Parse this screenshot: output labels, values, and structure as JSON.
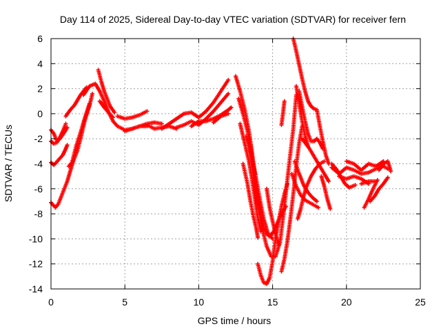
{
  "chart_data": {
    "type": "scatter",
    "title": "Day 114 of 2025, Sidereal Day-to-day VTEC variation (SDTVAR) for receiver fern",
    "xlabel": "GPS time / hours",
    "ylabel": "SDTVAR / TECUs",
    "xlim": [
      0,
      25
    ],
    "ylim": [
      -14,
      6
    ],
    "x_ticks": [
      "0",
      "5",
      "10",
      "15",
      "20",
      "25"
    ],
    "y_ticks": [
      "6",
      "4",
      "2",
      "0",
      "-2",
      "-4",
      "-6",
      "-8",
      "-10",
      "-12",
      "-14"
    ],
    "grid": true,
    "marker": "+",
    "color": "#ff0000",
    "series": [
      {
        "x": [
          0.0,
          0.2,
          0.4,
          0.6,
          0.9,
          1.1
        ],
        "y": [
          -1.3,
          -1.6,
          -2.2,
          -2.0,
          -1.5,
          -1.1
        ]
      },
      {
        "x": [
          0.0,
          0.2,
          0.4,
          0.6,
          0.8,
          1.0
        ],
        "y": [
          -2.2,
          -2.4,
          -2.3,
          -1.9,
          -1.4,
          -0.8
        ]
      },
      {
        "x": [
          0.0,
          0.2,
          0.5,
          0.8,
          1.0,
          1.1
        ],
        "y": [
          -3.9,
          -4.1,
          -3.7,
          -3.3,
          -2.8,
          -2.5
        ]
      },
      {
        "x": [
          0.0,
          0.3,
          0.5,
          0.7,
          0.9,
          1.1,
          1.3,
          1.5
        ],
        "y": [
          -7.1,
          -7.5,
          -7.2,
          -6.6,
          -6.0,
          -5.4,
          -4.6,
          -3.8
        ]
      },
      {
        "x": [
          1.0,
          1.3,
          1.6,
          1.8,
          2.0,
          2.2,
          2.4
        ],
        "y": [
          -0.2,
          0.3,
          0.7,
          1.1,
          1.5,
          1.8,
          2.1
        ]
      },
      {
        "x": [
          1.2,
          1.5,
          1.8,
          2.0,
          2.3,
          2.6,
          2.8
        ],
        "y": [
          -4.2,
          -3.8,
          -2.9,
          -2.0,
          -0.5,
          0.6,
          1.6
        ]
      },
      {
        "x": [
          1.4,
          1.7,
          2.0,
          2.3,
          2.6
        ],
        "y": [
          -4.0,
          -2.6,
          -1.5,
          -0.3,
          0.8
        ]
      },
      {
        "x": [
          2.2,
          2.6,
          3.0,
          3.3,
          3.6,
          3.9,
          4.2,
          4.5,
          5.0,
          5.5,
          6.0,
          6.5
        ],
        "y": [
          1.5,
          2.2,
          2.4,
          1.8,
          1.0,
          0.1,
          -0.6,
          -1.0,
          -1.3,
          -1.2,
          -1.0,
          -1.0
        ]
      },
      {
        "x": [
          3.2,
          3.4,
          3.6,
          3.8,
          4.0,
          4.3
        ],
        "y": [
          3.5,
          2.6,
          1.8,
          1.2,
          0.6,
          0.1
        ]
      },
      {
        "x": [
          3.3,
          3.6,
          3.9,
          4.2
        ],
        "y": [
          1.0,
          0.5,
          0.1,
          -0.3
        ]
      },
      {
        "x": [
          4.5,
          5.0,
          5.5,
          6.0,
          6.5
        ],
        "y": [
          -0.2,
          -0.4,
          -0.3,
          -0.1,
          0.2
        ]
      },
      {
        "x": [
          5.0,
          5.5,
          6.0,
          6.5,
          7.0,
          7.5
        ],
        "y": [
          -1.4,
          -1.2,
          -1.0,
          -0.8,
          -0.7,
          -0.8
        ]
      },
      {
        "x": [
          6.5,
          7.0,
          7.5,
          8.0,
          8.5
        ],
        "y": [
          -0.9,
          -1.2,
          -1.1,
          -1.0,
          -1.2
        ]
      },
      {
        "x": [
          7.5,
          8.0,
          8.5,
          9.0,
          9.5,
          10.0,
          10.5,
          11.0,
          11.5,
          12.0
        ],
        "y": [
          -1.2,
          -0.8,
          -0.4,
          0.0,
          0.1,
          -0.3,
          0.2,
          0.9,
          1.8,
          2.7
        ]
      },
      {
        "x": [
          8.5,
          9.0,
          9.5,
          10.0,
          10.5,
          11.0,
          11.5,
          12.0
        ],
        "y": [
          -1.1,
          -0.9,
          -0.6,
          -0.9,
          -0.4,
          0.2,
          0.9,
          1.6
        ]
      },
      {
        "x": [
          9.5,
          10.0,
          10.5,
          11.0,
          11.5,
          12.0,
          12.2
        ],
        "y": [
          -1.0,
          -0.6,
          -0.6,
          -0.4,
          -0.1,
          0.3,
          0.5
        ]
      },
      {
        "x": [
          11.0,
          11.5,
          12.0
        ],
        "y": [
          -0.7,
          -0.2,
          0.0
        ]
      },
      {
        "x": [
          12.5,
          12.8,
          13.1,
          13.4,
          13.6,
          13.8,
          14.0,
          14.2,
          14.4,
          14.6,
          14.8,
          15.0
        ],
        "y": [
          3.0,
          1.8,
          0.4,
          -1.4,
          -3.0,
          -5.0,
          -6.8,
          -8.0,
          -9.0,
          -9.6,
          -9.8,
          -9.5
        ]
      },
      {
        "x": [
          12.7,
          13.0,
          13.3,
          13.5,
          13.7,
          13.9,
          14.1,
          14.3,
          14.6,
          14.9,
          15.2,
          15.5,
          15.8,
          16.1,
          16.4,
          16.6
        ],
        "y": [
          1.2,
          0.0,
          -1.4,
          -2.8,
          -4.4,
          -6.2,
          -7.8,
          -9.2,
          -10.6,
          -11.4,
          -11.4,
          -10.3,
          -7.4,
          -4.2,
          -1.2,
          1.5
        ]
      },
      {
        "x": [
          12.8,
          13.1,
          13.4,
          13.6,
          13.8,
          14.0,
          14.2
        ],
        "y": [
          -0.8,
          -2.3,
          -3.8,
          -5.2,
          -6.8,
          -8.3,
          -9.4
        ]
      },
      {
        "x": [
          13.0,
          13.3,
          13.5,
          13.7,
          13.9,
          14.0
        ],
        "y": [
          -4.0,
          -5.6,
          -7.0,
          -8.2,
          -9.2,
          -9.9
        ]
      },
      {
        "x": [
          13.2,
          13.4,
          13.6,
          13.8
        ],
        "y": [
          -1.8,
          -2.5,
          -3.6,
          -4.8
        ]
      },
      {
        "x": [
          13.5,
          13.8,
          14.1,
          14.4,
          14.7,
          15.0
        ],
        "y": [
          -2.5,
          -4.6,
          -6.6,
          -8.4,
          -9.6,
          -10.0
        ]
      },
      {
        "x": [
          14.0,
          14.2,
          14.4,
          14.6,
          14.8,
          15.0,
          15.2,
          15.4,
          15.6,
          15.8,
          16.0
        ],
        "y": [
          -12.0,
          -12.9,
          -13.5,
          -13.6,
          -13.1,
          -11.8,
          -10.0,
          -8.6,
          -7.4,
          -6.4,
          -5.6
        ]
      },
      {
        "x": [
          14.6,
          14.8,
          15.0,
          15.2,
          15.4
        ],
        "y": [
          -6.0,
          -7.5,
          -8.6,
          -9.6,
          -10.5
        ]
      },
      {
        "x": [
          15.0,
          15.3,
          15.6,
          15.9
        ],
        "y": [
          -9.6,
          -8.8,
          -8.0,
          -7.4
        ]
      },
      {
        "x": [
          15.6,
          15.8,
          16.0,
          16.2,
          16.4,
          16.6,
          16.8,
          17.0
        ],
        "y": [
          -12.6,
          -11.6,
          -10.2,
          -8.4,
          -6.4,
          -4.2,
          -2.3,
          -1.0
        ]
      },
      {
        "x": [
          15.6,
          15.7,
          15.8
        ],
        "y": [
          -0.9,
          0.0,
          1.0
        ]
      },
      {
        "x": [
          16.4,
          16.6,
          16.8,
          17.0,
          17.2,
          17.4,
          17.6,
          17.8,
          18.0
        ],
        "y": [
          6.0,
          5.0,
          3.9,
          2.8,
          1.8,
          1.0,
          0.6,
          0.4,
          0.3
        ]
      },
      {
        "x": [
          16.6,
          16.8,
          17.0,
          17.2,
          17.4
        ],
        "y": [
          2.2,
          0.8,
          -0.6,
          -1.8,
          -2.6
        ]
      },
      {
        "x": [
          16.8,
          17.0,
          17.2,
          17.4,
          17.6,
          17.8,
          18.0,
          18.2,
          18.4
        ],
        "y": [
          1.8,
          0.6,
          -0.6,
          -1.6,
          -2.2,
          -2.2,
          -2.0,
          -2.3,
          -2.8
        ]
      },
      {
        "x": [
          16.3,
          16.6,
          16.9,
          17.2,
          17.5,
          17.8,
          18.1
        ],
        "y": [
          -4.8,
          -5.8,
          -6.5,
          -6.9,
          -7.1,
          -7.3,
          -7.5
        ]
      },
      {
        "x": [
          16.5,
          16.8,
          17.1,
          17.4,
          17.7,
          18.0
        ],
        "y": [
          -3.8,
          -4.8,
          -5.7,
          -6.3,
          -6.7,
          -7.0
        ]
      },
      {
        "x": [
          16.7,
          16.9,
          17.1,
          17.3,
          17.6,
          17.9,
          18.2,
          18.5
        ],
        "y": [
          -8.4,
          -7.6,
          -6.6,
          -5.8,
          -5.0,
          -4.4,
          -4.0,
          -3.8
        ]
      },
      {
        "x": [
          17.0,
          17.5,
          18.0,
          18.5,
          18.8
        ],
        "y": [
          -2.0,
          -2.8,
          -3.8,
          -4.8,
          -5.4
        ]
      },
      {
        "x": [
          18.0,
          18.2,
          18.4,
          18.6,
          18.8
        ],
        "y": [
          0.3,
          -1.0,
          -2.2,
          -3.3,
          -4.0
        ]
      },
      {
        "x": [
          18.3,
          18.5,
          18.7,
          18.9
        ],
        "y": [
          -5.0,
          -5.8,
          -6.8,
          -7.6
        ]
      },
      {
        "x": [
          19.0,
          19.3,
          19.6,
          19.9,
          20.2,
          20.6
        ],
        "y": [
          -4.0,
          -4.4,
          -5.0,
          -5.6,
          -5.9,
          -5.7
        ]
      },
      {
        "x": [
          19.0,
          19.5,
          20.0,
          20.5,
          21.0,
          21.5,
          22.0,
          22.5,
          22.8
        ],
        "y": [
          -4.3,
          -4.8,
          -4.3,
          -4.5,
          -4.8,
          -4.7,
          -4.4,
          -4.2,
          -4.4
        ]
      },
      {
        "x": [
          19.5,
          20.0,
          20.5,
          21.0,
          21.5
        ],
        "y": [
          -5.0,
          -5.2,
          -5.0,
          -5.2,
          -5.6
        ]
      },
      {
        "x": [
          20.0,
          20.5,
          21.0,
          21.5,
          22.0,
          22.5
        ],
        "y": [
          -3.8,
          -4.0,
          -4.5,
          -4.0,
          -4.2,
          -3.8
        ]
      },
      {
        "x": [
          21.0,
          21.5,
          22.0
        ],
        "y": [
          -5.6,
          -5.4,
          -5.4
        ]
      },
      {
        "x": [
          21.2,
          21.5,
          21.8,
          22.1
        ],
        "y": [
          -7.5,
          -6.8,
          -6.0,
          -5.3
        ]
      },
      {
        "x": [
          21.6,
          21.9,
          22.2,
          22.5,
          22.8
        ],
        "y": [
          -7.0,
          -6.6,
          -6.0,
          -5.6,
          -5.1
        ]
      },
      {
        "x": [
          22.2,
          22.5,
          22.8,
          23.0
        ],
        "y": [
          -4.5,
          -4.0,
          -3.8,
          -4.6
        ]
      }
    ]
  }
}
